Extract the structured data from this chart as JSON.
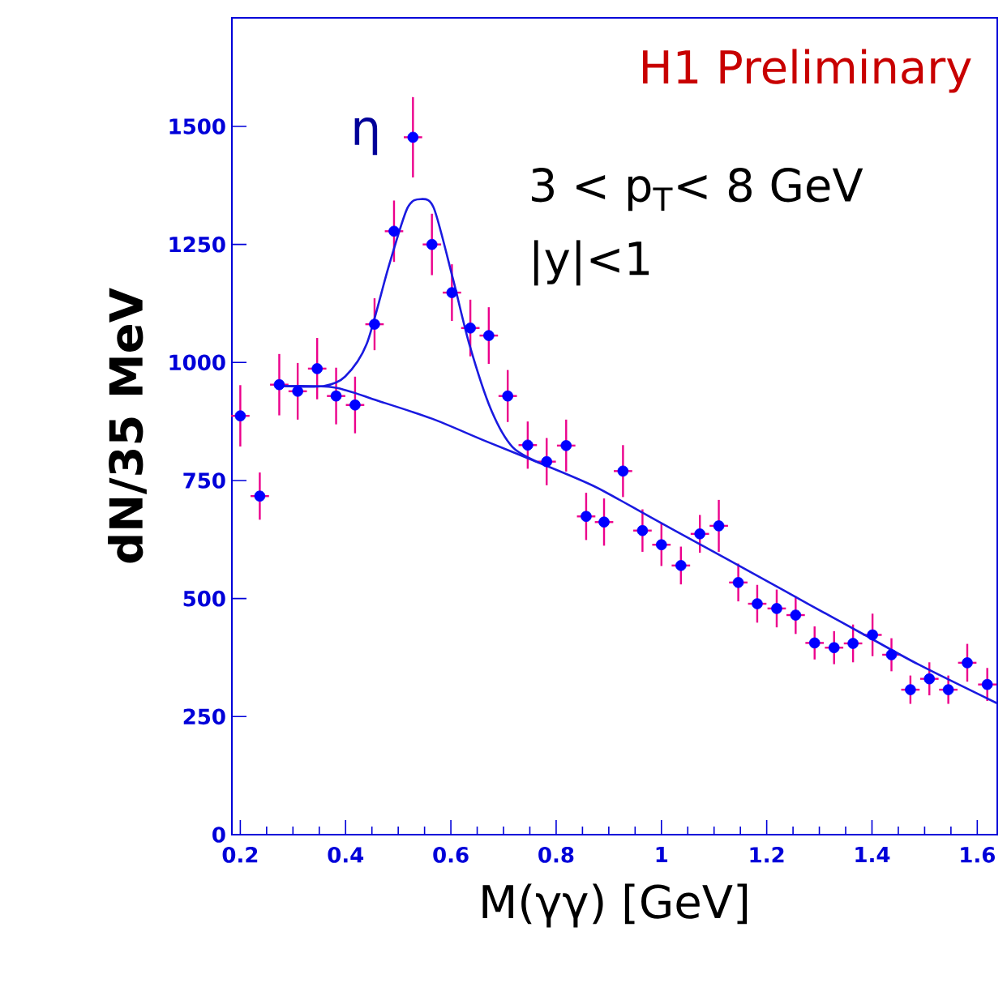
{
  "chart_data": {
    "type": "scatter",
    "xlabel": "M(γγ) [GeV]",
    "ylabel": "dN/35 MeV",
    "xlim": [
      0.184,
      1.638
    ],
    "ylim": [
      0,
      1730
    ],
    "xticks": [
      0.2,
      0.4,
      0.6,
      0.8,
      1,
      1.2,
      1.4,
      1.6
    ],
    "yticks": [
      0,
      250,
      500,
      750,
      1000,
      1250,
      1500
    ],
    "grid": false,
    "annotations": [
      "H1 Preliminary",
      "3 < p$_{T}$< 8 GeV",
      "|y|<1",
      "η"
    ],
    "series": [
      {
        "type": "scatter",
        "color": "#0000ff",
        "marker": "circle",
        "x": [
          0.2,
          0.237,
          0.274,
          0.309,
          0.346,
          0.382,
          0.418,
          0.455,
          0.492,
          0.528,
          0.564,
          0.602,
          0.637,
          0.672,
          0.708,
          0.746,
          0.782,
          0.819,
          0.857,
          0.891,
          0.927,
          0.964,
          1.0,
          1.037,
          1.073,
          1.109,
          1.146,
          1.182,
          1.219,
          1.255,
          1.291,
          1.328,
          1.364,
          1.401,
          1.437,
          1.473,
          1.509,
          1.545,
          1.581,
          1.619
        ],
        "values": [
          887,
          717,
          953,
          939,
          987,
          929,
          910,
          1081,
          1278,
          1477,
          1250,
          1148,
          1073,
          1057,
          929,
          825,
          790,
          824,
          674,
          662,
          770,
          644,
          614,
          570,
          637,
          654,
          534,
          489,
          479,
          465,
          406,
          396,
          405,
          423,
          381,
          307,
          330,
          307,
          364,
          318
        ],
        "errors": [
          65,
          50,
          65,
          60,
          65,
          60,
          60,
          55,
          65,
          85,
          65,
          60,
          60,
          60,
          55,
          50,
          50,
          55,
          50,
          50,
          55,
          45,
          45,
          40,
          40,
          55,
          40,
          40,
          40,
          40,
          35,
          35,
          40,
          45,
          35,
          30,
          35,
          30,
          40,
          35
        ],
        "xerrors": [
          0.0175,
          0.0175,
          0.0175,
          0.0175,
          0.0175,
          0.0175,
          0.0175,
          0.0175,
          0.0175,
          0.0175,
          0.0175,
          0.0175,
          0.0175,
          0.0175,
          0.0175,
          0.0175,
          0.0175,
          0.0175,
          0.0175,
          0.0175,
          0.0175,
          0.0175,
          0.0175,
          0.0175,
          0.0175,
          0.0175,
          0.0175,
          0.0175,
          0.0175,
          0.0175,
          0.0175,
          0.0175,
          0.0175,
          0.0175,
          0.0175,
          0.0175,
          0.0175,
          0.0175,
          0.0175,
          0.0175
        ]
      },
      {
        "type": "line",
        "color": "#1a1ae0",
        "marker": "none",
        "line_style": "solid",
        "x": [
          0.281,
          0.358,
          0.399,
          0.44,
          0.481,
          0.517,
          0.543,
          0.568,
          0.604,
          0.635,
          0.676,
          0.717,
          0.769
        ],
        "values": [
          950,
          950,
          970,
          1039,
          1200,
          1326,
          1346,
          1326,
          1177,
          1039,
          901,
          821,
          787
        ]
      },
      {
        "type": "line",
        "color": "#1a1ae0",
        "marker": "none",
        "line_style": "solid",
        "x": [
          0.281,
          0.379,
          0.461,
          0.564,
          0.667,
          0.769,
          0.872,
          0.975,
          1.078,
          1.181,
          1.283,
          1.386,
          1.489,
          1.638
        ],
        "values": [
          950,
          947,
          919,
          881,
          833,
          787,
          738,
          675,
          612,
          549,
          486,
          423,
          360,
          278
        ]
      }
    ]
  }
}
